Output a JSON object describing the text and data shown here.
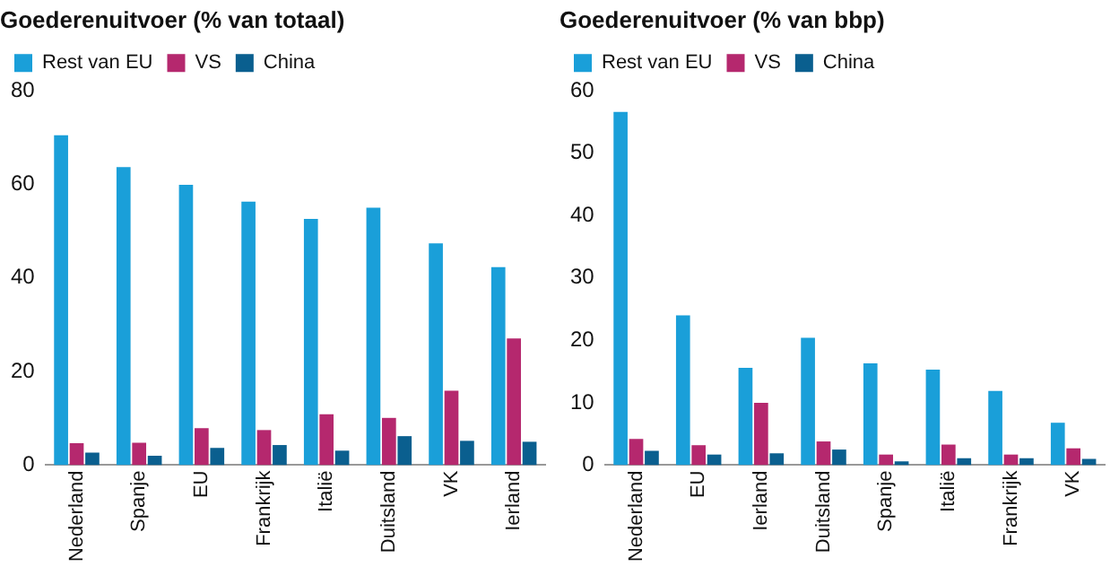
{
  "chart_data": [
    {
      "type": "bar",
      "title": "Goederenuitvoer (% van totaal)",
      "categories": [
        "Nederland",
        "Spanje",
        "EU",
        "Frankrijk",
        "Italië",
        "Duitsland",
        "VK",
        "Ierland"
      ],
      "series": [
        {
          "name": "Rest van EU",
          "color": "#1a9fd9",
          "values": [
            70.5,
            63.7,
            59.9,
            56.3,
            52.6,
            55.0,
            47.4,
            42.3
          ]
        },
        {
          "name": "VS",
          "color": "#b5286e",
          "values": [
            4.7,
            4.8,
            7.9,
            7.5,
            10.9,
            10.1,
            15.9,
            27.1
          ]
        },
        {
          "name": "China",
          "color": "#0a5f8f",
          "values": [
            2.7,
            2.0,
            3.7,
            4.3,
            3.1,
            6.2,
            5.2,
            5.0
          ]
        }
      ],
      "ylim": [
        0,
        80
      ],
      "yticks": [
        0,
        20,
        40,
        60,
        80
      ],
      "grid": false,
      "legend": "top left"
    },
    {
      "type": "bar",
      "title": "Goederenuitvoer (% van bbp)",
      "categories": [
        "Nederland",
        "EU",
        "Ierland",
        "Duitsland",
        "Spanje",
        "Italië",
        "Frankrijk",
        "VK"
      ],
      "series": [
        {
          "name": "Rest van EU",
          "color": "#1a9fd9",
          "values": [
            56.6,
            24.0,
            15.6,
            20.4,
            16.3,
            15.3,
            11.9,
            6.8
          ]
        },
        {
          "name": "VS",
          "color": "#b5286e",
          "values": [
            4.2,
            3.2,
            10.0,
            3.8,
            1.7,
            3.3,
            1.7,
            2.7
          ]
        },
        {
          "name": "China",
          "color": "#0a5f8f",
          "values": [
            2.3,
            1.7,
            1.9,
            2.5,
            0.6,
            1.1,
            1.1,
            1.0
          ]
        }
      ],
      "ylim": [
        0,
        60
      ],
      "yticks": [
        0,
        10,
        20,
        30,
        40,
        50,
        60
      ],
      "grid": false,
      "legend": "top left"
    }
  ]
}
